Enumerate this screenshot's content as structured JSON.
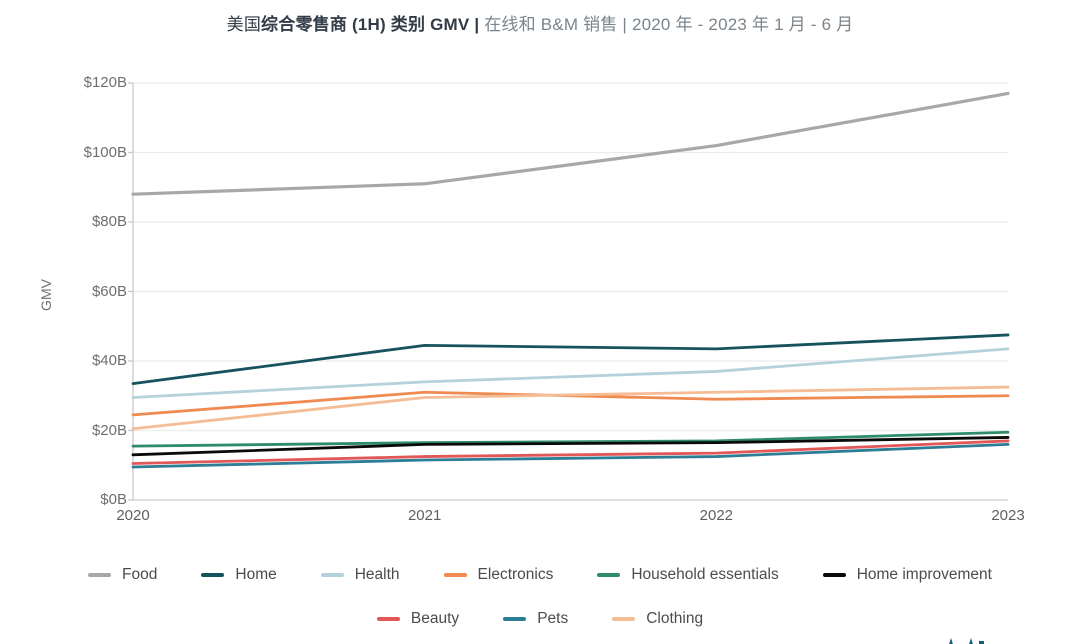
{
  "title": {
    "prefix": "美国",
    "emphasis": "综合零售商 (1H) 类别 GMV",
    "separator": " | ",
    "subtitle": "在线和 B&M 销售 | 2020 年 - 2023 年 1 月 - 6 月"
  },
  "chart_data": {
    "type": "line",
    "title": "美国综合零售商 (1H) 类别 GMV | 在线和 B&M 销售 | 2020 年 - 2023 年 1 月 - 6 月",
    "ylabel": "GMV",
    "x_labels": [
      "2020",
      "2021",
      "2022",
      "2023"
    ],
    "ytick_labels": [
      "$0B",
      "$20B",
      "$40B",
      "$60B",
      "$80B",
      "$100B",
      "$120B"
    ],
    "ylim": [
      0,
      120
    ],
    "grid": "horizontal",
    "legend_position": "bottom",
    "series": [
      {
        "name": "Food",
        "color": "#a8a8a8",
        "values": [
          88,
          91,
          102,
          117
        ]
      },
      {
        "name": "Home",
        "color": "#17535f",
        "values": [
          33.5,
          44.5,
          43.5,
          47.5
        ]
      },
      {
        "name": "Health",
        "color": "#b3d2da",
        "values": [
          29.5,
          34,
          37,
          43.5
        ]
      },
      {
        "name": "Electronics",
        "color": "#ef8a50",
        "values": [
          24.5,
          31,
          29,
          30
        ]
      },
      {
        "name": "Household essentials",
        "color": "#2f8c69",
        "values": [
          15.5,
          16.5,
          17,
          19.5
        ]
      },
      {
        "name": "Home improvement",
        "color": "#0a0a0a",
        "values": [
          13,
          16,
          16.5,
          18
        ]
      },
      {
        "name": "Beauty",
        "color": "#e25757",
        "values": [
          10.5,
          12.5,
          13.5,
          17
        ]
      },
      {
        "name": "Pets",
        "color": "#2c7d96",
        "values": [
          9.5,
          11.5,
          12.5,
          16
        ]
      },
      {
        "name": "Clothing",
        "color": "#f5bd95",
        "values": [
          20.5,
          29.5,
          31,
          32.5
        ]
      }
    ],
    "legend_rows": [
      [
        0,
        1,
        2,
        3,
        4,
        5
      ],
      [
        6,
        7,
        8
      ]
    ]
  },
  "logo": {
    "color": "#115e76"
  }
}
